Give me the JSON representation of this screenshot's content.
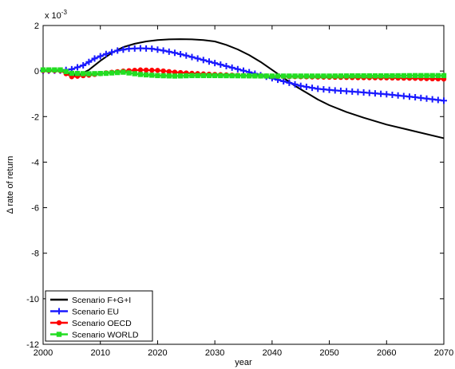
{
  "chart_data": {
    "type": "line",
    "xlabel": "year",
    "ylabel": "Δ rate of return",
    "y_exponent_label": "x 10",
    "y_exponent_power": "-3",
    "xlim": [
      2000,
      2070
    ],
    "ylim": [
      -12,
      2
    ],
    "x_ticks": [
      2000,
      2010,
      2020,
      2030,
      2040,
      2050,
      2060,
      2070
    ],
    "y_ticks": [
      -12,
      -10,
      -8,
      -6,
      -4,
      -2,
      0,
      2
    ],
    "grid": false,
    "legend_position": "bottom-left",
    "series": [
      {
        "name": "Scenario F+G+I",
        "color": "#000000",
        "marker": "none",
        "x": [
          2000,
          2003,
          2005,
          2006,
          2008,
          2010,
          2012,
          2014,
          2016,
          2018,
          2020,
          2022,
          2024,
          2026,
          2028,
          2030,
          2032,
          2034,
          2036,
          2038,
          2040,
          2042,
          2044,
          2046,
          2048,
          2050,
          2053,
          2056,
          2060,
          2065,
          2070
        ],
        "y": [
          0.02,
          0.02,
          -0.15,
          -0.2,
          0.05,
          0.45,
          0.8,
          1.05,
          1.2,
          1.3,
          1.36,
          1.39,
          1.4,
          1.39,
          1.36,
          1.3,
          1.15,
          0.95,
          0.7,
          0.4,
          0.05,
          -0.3,
          -0.65,
          -0.95,
          -1.25,
          -1.5,
          -1.8,
          -2.05,
          -2.35,
          -2.65,
          -2.95
        ]
      },
      {
        "name": "Scenario EU",
        "color": "#1a1aff",
        "marker": "plus",
        "x": [
          2000,
          2003,
          2005,
          2007,
          2009,
          2011,
          2013,
          2015,
          2017,
          2019,
          2021,
          2023,
          2025,
          2027,
          2030,
          2033,
          2036,
          2039,
          2042,
          2045,
          2048,
          2051,
          2055,
          2060,
          2065,
          2070
        ],
        "y": [
          0.02,
          0.02,
          0.08,
          0.25,
          0.55,
          0.75,
          0.9,
          0.98,
          1.0,
          0.98,
          0.9,
          0.8,
          0.68,
          0.55,
          0.35,
          0.15,
          -0.05,
          -0.25,
          -0.45,
          -0.65,
          -0.78,
          -0.85,
          -0.92,
          -1.02,
          -1.15,
          -1.3
        ]
      },
      {
        "name": "Scenario OECD",
        "color": "#ff0000",
        "marker": "dot",
        "x": [
          2000,
          2003,
          2005,
          2008,
          2011,
          2014,
          2017,
          2020,
          2023,
          2026,
          2030,
          2035,
          2040,
          2045,
          2050,
          2055,
          2060,
          2065,
          2070
        ],
        "y": [
          0.02,
          0.02,
          -0.25,
          -0.18,
          -0.08,
          0.0,
          0.05,
          0.03,
          -0.05,
          -0.1,
          -0.15,
          -0.2,
          -0.23,
          -0.25,
          -0.27,
          -0.29,
          -0.3,
          -0.32,
          -0.35
        ]
      },
      {
        "name": "Scenario WORLD",
        "color": "#22dd22",
        "marker": "square",
        "x": [
          2000,
          2003,
          2005,
          2008,
          2011,
          2014,
          2017,
          2020,
          2023,
          2026,
          2030,
          2035,
          2040,
          2045,
          2050,
          2055,
          2060,
          2065,
          2070
        ],
        "y": [
          0.05,
          0.05,
          -0.1,
          -0.12,
          -0.1,
          -0.05,
          -0.15,
          -0.2,
          -0.22,
          -0.2,
          -0.2,
          -0.21,
          -0.22,
          -0.22,
          -0.22,
          -0.21,
          -0.21,
          -0.2,
          -0.2
        ]
      }
    ]
  }
}
